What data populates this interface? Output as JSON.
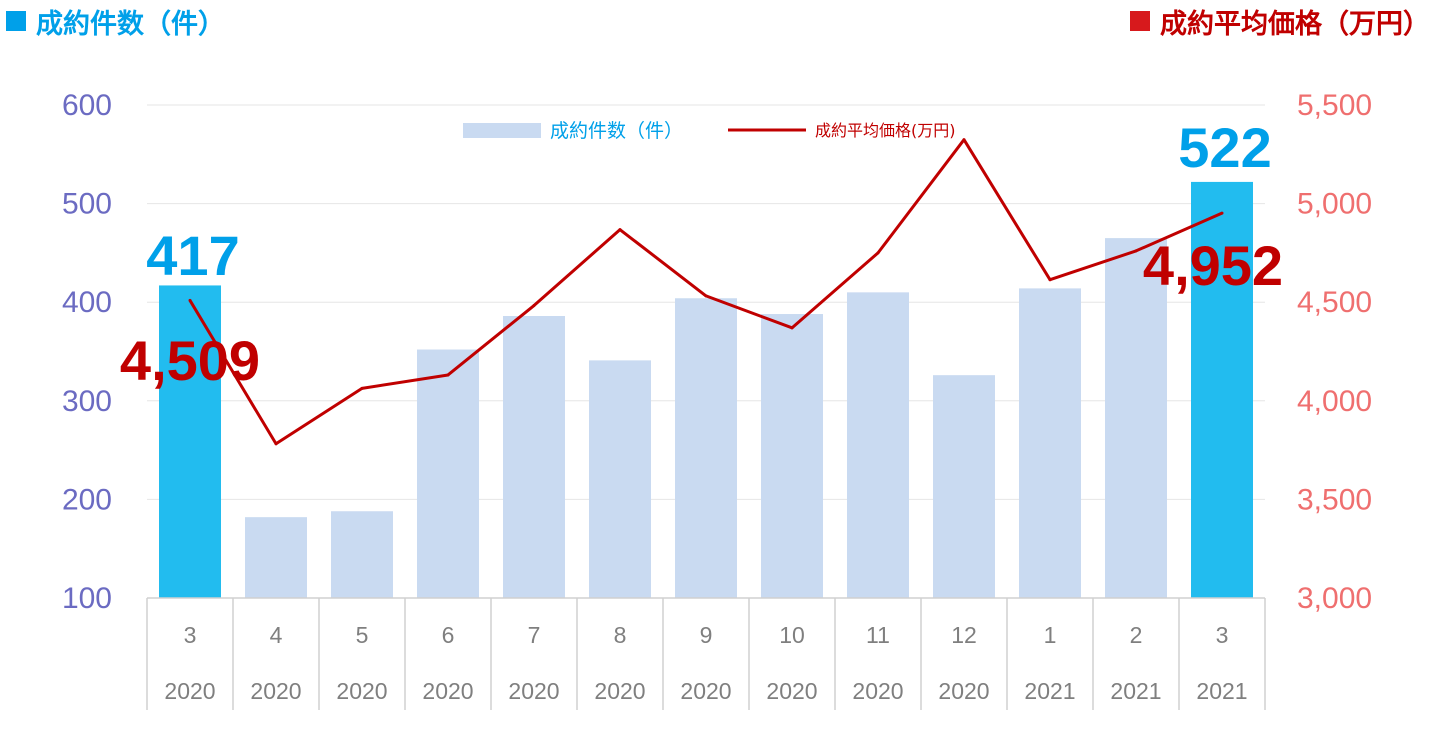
{
  "header": {
    "left_title": "成約件数（件）",
    "right_title": "成約平均価格（万円）"
  },
  "legend": {
    "bar_label": "成約件数（件）",
    "line_label": "成約平均価格(万円)"
  },
  "callouts": {
    "first_count": "417",
    "last_count": "522",
    "first_price": "4,509",
    "last_price": "4,952"
  },
  "colors": {
    "bar": "#c9daf1",
    "bar_highlight": "#22bcef",
    "line": "#c00000",
    "left_axis": "#6b6bc2",
    "right_axis": "#ef6f6f"
  },
  "chart_data": {
    "type": "bar",
    "combo": "bar+line",
    "categories": [
      {
        "month": "3",
        "year": "2020"
      },
      {
        "month": "4",
        "year": "2020"
      },
      {
        "month": "5",
        "year": "2020"
      },
      {
        "month": "6",
        "year": "2020"
      },
      {
        "month": "7",
        "year": "2020"
      },
      {
        "month": "8",
        "year": "2020"
      },
      {
        "month": "9",
        "year": "2020"
      },
      {
        "month": "10",
        "year": "2020"
      },
      {
        "month": "11",
        "year": "2020"
      },
      {
        "month": "12",
        "year": "2020"
      },
      {
        "month": "1",
        "year": "2021"
      },
      {
        "month": "2",
        "year": "2021"
      },
      {
        "month": "3",
        "year": "2021"
      }
    ],
    "series": [
      {
        "name": "成約件数（件）",
        "type": "bar",
        "axis": "left",
        "values": [
          417,
          182,
          188,
          352,
          386,
          341,
          404,
          388,
          410,
          326,
          414,
          465,
          522
        ],
        "highlight": [
          0,
          12
        ]
      },
      {
        "name": "成約平均価格(万円)",
        "type": "line",
        "axis": "right",
        "values": [
          4509,
          3782,
          4063,
          4131,
          4483,
          4868,
          4532,
          4370,
          4750,
          5324,
          4614,
          4760,
          4952
        ]
      }
    ],
    "y_left": {
      "min": 100,
      "max": 600,
      "ticks": [
        100,
        200,
        300,
        400,
        500,
        600
      ],
      "tick_labels": [
        "100",
        "200",
        "300",
        "400",
        "500",
        "600"
      ]
    },
    "y_right": {
      "min": 3000,
      "max": 5500,
      "ticks": [
        3000,
        3500,
        4000,
        4500,
        5000,
        5500
      ],
      "tick_labels": [
        "3,000",
        "3,500",
        "4,000",
        "4,500",
        "5,000",
        "5,500"
      ]
    },
    "grid": true,
    "legend_position": "top-center"
  }
}
